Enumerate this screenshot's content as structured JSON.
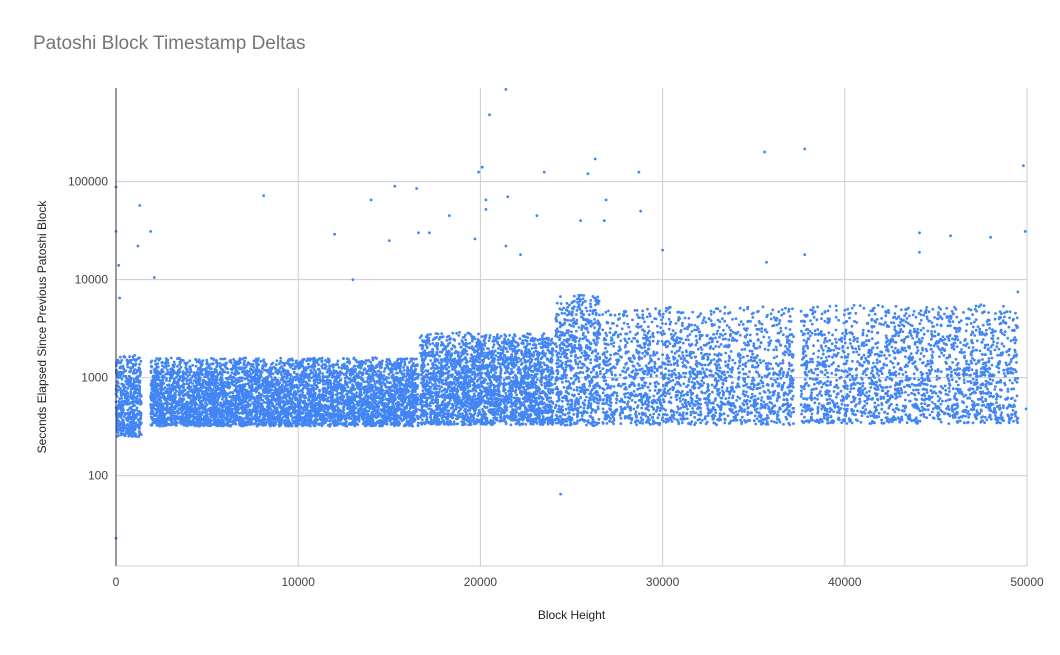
{
  "chart_data": {
    "type": "scatter",
    "title": "Patoshi Block Timestamp Deltas",
    "xlabel": "Block Height",
    "ylabel": "Seconds Elapsed Since Previous Patoshi Block",
    "xlim": [
      0,
      50000
    ],
    "ylim": [
      12,
      900000
    ],
    "y_scale": "log",
    "grid": true,
    "legend": "none",
    "x_ticks": [
      "0",
      "10000",
      "20000",
      "30000",
      "40000",
      "50000"
    ],
    "y_ticks": [
      {
        "value": 100,
        "label": "100"
      },
      {
        "value": 1000,
        "label": "1000"
      },
      {
        "value": 10000,
        "label": "10000"
      },
      {
        "value": 100000,
        "label": "100000"
      }
    ],
    "point_color": "#4285f4",
    "segments": [
      {
        "x_start": 0,
        "x_end": 1400,
        "y_min": 250,
        "y_max": 1700,
        "approx_points": 500
      },
      {
        "x_start": 1900,
        "x_end": 16600,
        "y_min": 320,
        "y_max": 1600,
        "approx_points": 5000
      },
      {
        "x_start": 16700,
        "x_end": 24000,
        "y_min": 330,
        "y_max": 2900,
        "approx_points": 2600
      },
      {
        "x_start": 24100,
        "x_end": 26600,
        "y_min": 320,
        "y_max": 7500,
        "approx_points": 700
      },
      {
        "x_start": 26700,
        "x_end": 37200,
        "y_min": 330,
        "y_max": 5300,
        "approx_points": 1800
      },
      {
        "x_start": 37600,
        "x_end": 49500,
        "y_min": 340,
        "y_max": 5600,
        "approx_points": 1900
      }
    ],
    "outliers": [
      {
        "x": 0,
        "y": 88000
      },
      {
        "x": 0,
        "y": 31000
      },
      {
        "x": 0,
        "y": 23
      },
      {
        "x": 150,
        "y": 14000
      },
      {
        "x": 200,
        "y": 6500
      },
      {
        "x": 1300,
        "y": 57000
      },
      {
        "x": 1200,
        "y": 22000
      },
      {
        "x": 1900,
        "y": 31000
      },
      {
        "x": 2100,
        "y": 10500
      },
      {
        "x": 8100,
        "y": 72000
      },
      {
        "x": 12000,
        "y": 29000
      },
      {
        "x": 13000,
        "y": 10000
      },
      {
        "x": 14000,
        "y": 65000
      },
      {
        "x": 15300,
        "y": 90000
      },
      {
        "x": 15000,
        "y": 25000
      },
      {
        "x": 16500,
        "y": 85000
      },
      {
        "x": 16600,
        "y": 30000
      },
      {
        "x": 17200,
        "y": 30000
      },
      {
        "x": 18300,
        "y": 45000
      },
      {
        "x": 19700,
        "y": 26000
      },
      {
        "x": 19900,
        "y": 125000
      },
      {
        "x": 20100,
        "y": 140000
      },
      {
        "x": 20300,
        "y": 65000
      },
      {
        "x": 20500,
        "y": 480000
      },
      {
        "x": 20300,
        "y": 52000
      },
      {
        "x": 21400,
        "y": 870000
      },
      {
        "x": 21500,
        "y": 70000
      },
      {
        "x": 21400,
        "y": 22000
      },
      {
        "x": 22200,
        "y": 18000
      },
      {
        "x": 23100,
        "y": 45000
      },
      {
        "x": 23500,
        "y": 125000
      },
      {
        "x": 24400,
        "y": 65
      },
      {
        "x": 25500,
        "y": 40000
      },
      {
        "x": 25900,
        "y": 120000
      },
      {
        "x": 26300,
        "y": 170000
      },
      {
        "x": 26800,
        "y": 40000
      },
      {
        "x": 26900,
        "y": 65000
      },
      {
        "x": 28700,
        "y": 125000
      },
      {
        "x": 28800,
        "y": 50000
      },
      {
        "x": 30000,
        "y": 20000
      },
      {
        "x": 35600,
        "y": 200000
      },
      {
        "x": 35700,
        "y": 15000
      },
      {
        "x": 37800,
        "y": 215000
      },
      {
        "x": 37800,
        "y": 18000
      },
      {
        "x": 44100,
        "y": 30000
      },
      {
        "x": 44100,
        "y": 19000
      },
      {
        "x": 45800,
        "y": 28000
      },
      {
        "x": 48000,
        "y": 27000
      },
      {
        "x": 49500,
        "y": 7500
      },
      {
        "x": 49800,
        "y": 145000
      },
      {
        "x": 49900,
        "y": 31000
      },
      {
        "x": 49950,
        "y": 480
      }
    ]
  }
}
